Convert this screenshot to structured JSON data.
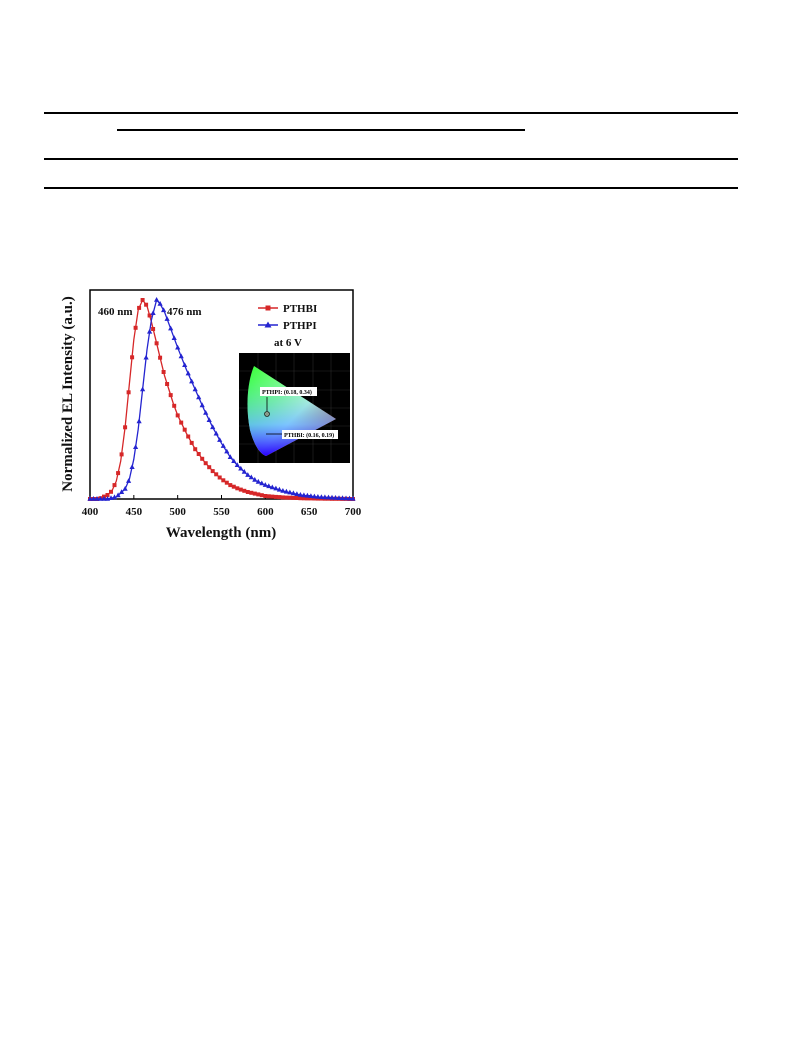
{
  "chart_data": {
    "type": "line",
    "xlabel": "Wavelength (nm)",
    "ylabel": "Normalized EL Intensity (a.u.)",
    "xlim": [
      400,
      700
    ],
    "ylim": [
      0,
      1.05
    ],
    "xticks": [
      400,
      450,
      500,
      550,
      600,
      650,
      700
    ],
    "yticks_labeled": false,
    "grid": false,
    "legend_placement": "top-right",
    "legend_note": "at 6 V",
    "annotations": [
      "460 nm",
      "476 nm"
    ],
    "series": [
      {
        "name": "PTHBI",
        "color": "#d62728",
        "marker": "square",
        "x": [
          400,
          410,
          420,
          425,
          430,
          435,
          440,
          445,
          450,
          455,
          460,
          465,
          470,
          475,
          480,
          485,
          490,
          495,
          500,
          510,
          520,
          530,
          540,
          550,
          560,
          570,
          580,
          590,
          600,
          620,
          640,
          660,
          680,
          700
        ],
        "y": [
          0.0,
          0.0,
          0.02,
          0.04,
          0.09,
          0.19,
          0.36,
          0.58,
          0.8,
          0.95,
          1.0,
          0.97,
          0.89,
          0.8,
          0.71,
          0.62,
          0.55,
          0.48,
          0.42,
          0.33,
          0.25,
          0.19,
          0.14,
          0.1,
          0.07,
          0.05,
          0.035,
          0.025,
          0.015,
          0.008,
          0.004,
          0.002,
          0.001,
          0.0
        ]
      },
      {
        "name": "PTHPI",
        "color": "#2424d0",
        "marker": "triangle",
        "x": [
          400,
          420,
          430,
          440,
          445,
          450,
          455,
          460,
          465,
          470,
          476,
          480,
          485,
          490,
          495,
          500,
          510,
          520,
          530,
          540,
          550,
          560,
          570,
          580,
          590,
          600,
          620,
          640,
          660,
          680,
          700
        ],
        "y": [
          0.0,
          0.0,
          0.01,
          0.05,
          0.1,
          0.2,
          0.35,
          0.55,
          0.75,
          0.9,
          1.0,
          0.98,
          0.94,
          0.88,
          0.82,
          0.76,
          0.65,
          0.55,
          0.45,
          0.36,
          0.28,
          0.21,
          0.16,
          0.12,
          0.09,
          0.07,
          0.04,
          0.02,
          0.01,
          0.005,
          0.001
        ]
      }
    ],
    "inset": {
      "type": "scatter",
      "description_labels": [
        "PTHPI: (0.18, 0.34)",
        "PTHBI: (0.16, 0.19)"
      ],
      "points": [
        {
          "name": "PTHPI",
          "x": 0.18,
          "y": 0.34
        },
        {
          "name": "PTHBI",
          "x": 0.16,
          "y": 0.19
        }
      ]
    }
  }
}
